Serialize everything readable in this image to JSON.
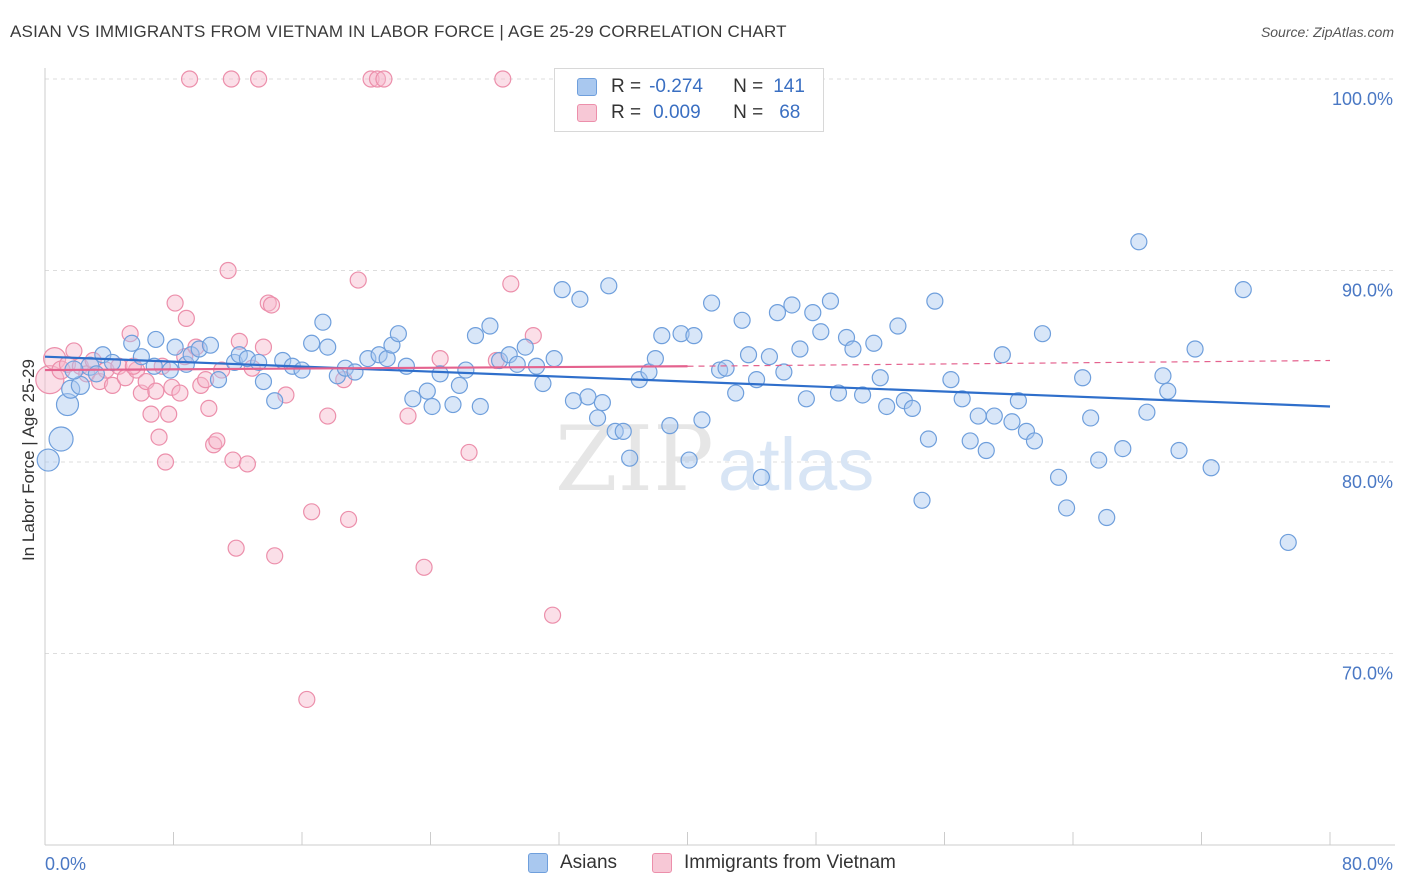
{
  "title": "ASIAN VS IMMIGRANTS FROM VIETNAM IN LABOR FORCE | AGE 25-29 CORRELATION CHART",
  "source": "Source: ZipAtlas.com",
  "watermark": {
    "zip": "ZIP",
    "atlas": "atlas"
  },
  "legend": {
    "series1": {
      "r_label": "R =",
      "r_value": "-0.274",
      "n_label": "N =",
      "n_value": "141"
    },
    "series2": {
      "r_label": "R =",
      "r_value": "0.009",
      "n_label": "N =",
      "n_value": "68"
    }
  },
  "bottom_legend": {
    "series1": "Asians",
    "series2": "Immigrants from Vietnam"
  },
  "colors": {
    "asian_fill": "#a9c8ef",
    "asian_stroke": "#6f9fdc",
    "asian_line": "#2f6fcb",
    "viet_fill": "#f7b9cb",
    "viet_stroke": "#ec8fab",
    "viet_line": "#e4628e",
    "tick_text": "#4a78c4",
    "grid": "#dddddd"
  },
  "chart_data": {
    "type": "scatter",
    "title": "ASIAN VS IMMIGRANTS FROM VIETNAM IN LABOR FORCE | AGE 25-29 CORRELATION CHART",
    "xlabel": "",
    "ylabel": "In Labor Force | Age 25-29",
    "xlim": [
      0,
      80
    ],
    "ylim": [
      60,
      102
    ],
    "x_tick_labels": [
      "0.0%",
      "80.0%"
    ],
    "y_ticks": [
      70,
      80,
      90,
      100
    ],
    "y_tick_labels": [
      "70.0%",
      "80.0%",
      "90.0%",
      "100.0%"
    ],
    "grid": "horizontal dashed",
    "legend_position": "top-center",
    "series": [
      {
        "name": "Asians",
        "R": -0.274,
        "N": 141,
        "trend": {
          "x": [
            0,
            80
          ],
          "y": [
            85.5,
            82.9
          ]
        },
        "points": [
          [
            0.2,
            80.1,
            11
          ],
          [
            1.0,
            81.2,
            12
          ],
          [
            1.4,
            83.0,
            11
          ],
          [
            1.6,
            83.8,
            9
          ],
          [
            2.2,
            84.0,
            9
          ],
          [
            2.8,
            85.0,
            9
          ],
          [
            3.6,
            85.6,
            8
          ],
          [
            3.2,
            84.6,
            8
          ],
          [
            5.4,
            86.2,
            8
          ],
          [
            6.0,
            85.5,
            8
          ],
          [
            6.9,
            86.4,
            8
          ],
          [
            6.8,
            85.0,
            8
          ],
          [
            7.8,
            84.8,
            8
          ],
          [
            8.1,
            86.0,
            8
          ],
          [
            8.8,
            85.1,
            8
          ],
          [
            9.1,
            85.6,
            8
          ],
          [
            9.6,
            85.9,
            8
          ],
          [
            10.3,
            86.1,
            8
          ],
          [
            10.8,
            84.3,
            8
          ],
          [
            11.8,
            85.2,
            8
          ],
          [
            12.1,
            85.6,
            8
          ],
          [
            12.6,
            85.4,
            8
          ],
          [
            13.6,
            84.2,
            8
          ],
          [
            13.3,
            85.2,
            8
          ],
          [
            14.3,
            83.2,
            8
          ],
          [
            14.8,
            85.3,
            8
          ],
          [
            15.4,
            85.0,
            8
          ],
          [
            16.0,
            84.8,
            8
          ],
          [
            16.6,
            86.2,
            8
          ],
          [
            17.3,
            87.3,
            8
          ],
          [
            17.6,
            86.0,
            8
          ],
          [
            18.2,
            84.5,
            8
          ],
          [
            18.7,
            84.9,
            8
          ],
          [
            19.3,
            84.7,
            8
          ],
          [
            20.1,
            85.4,
            8
          ],
          [
            20.8,
            85.6,
            8
          ],
          [
            21.3,
            85.4,
            8
          ],
          [
            21.6,
            86.1,
            8
          ],
          [
            22.0,
            86.7,
            8
          ],
          [
            22.5,
            85.0,
            8
          ],
          [
            22.9,
            83.3,
            8
          ],
          [
            23.8,
            83.7,
            8
          ],
          [
            24.1,
            82.9,
            8
          ],
          [
            24.6,
            84.6,
            8
          ],
          [
            25.4,
            83.0,
            8
          ],
          [
            25.8,
            84.0,
            8
          ],
          [
            26.8,
            86.6,
            8
          ],
          [
            27.1,
            82.9,
            8
          ],
          [
            27.7,
            87.1,
            8
          ],
          [
            28.3,
            85.3,
            8
          ],
          [
            28.9,
            85.6,
            8
          ],
          [
            29.4,
            85.1,
            8
          ],
          [
            29.9,
            86.0,
            8
          ],
          [
            30.6,
            85.0,
            8
          ],
          [
            31.0,
            84.1,
            8
          ],
          [
            31.7,
            85.4,
            8
          ],
          [
            32.2,
            89.0,
            8
          ],
          [
            32.9,
            83.2,
            8
          ],
          [
            33.3,
            88.5,
            8
          ],
          [
            33.8,
            83.4,
            8
          ],
          [
            34.4,
            82.3,
            8
          ],
          [
            34.7,
            83.1,
            8
          ],
          [
            35.1,
            89.2,
            8
          ],
          [
            35.5,
            81.6,
            8
          ],
          [
            36.0,
            81.6,
            8
          ],
          [
            36.4,
            80.2,
            8
          ],
          [
            37.0,
            84.3,
            8
          ],
          [
            37.6,
            84.7,
            8
          ],
          [
            38.0,
            85.4,
            8
          ],
          [
            38.4,
            86.6,
            8
          ],
          [
            38.9,
            81.9,
            8
          ],
          [
            39.6,
            86.7,
            8
          ],
          [
            40.1,
            80.1,
            8
          ],
          [
            40.4,
            86.6,
            8
          ],
          [
            40.9,
            82.2,
            8
          ],
          [
            41.5,
            88.3,
            8
          ],
          [
            42.0,
            84.8,
            8
          ],
          [
            42.4,
            84.9,
            8
          ],
          [
            43.0,
            83.6,
            8
          ],
          [
            43.4,
            87.4,
            8
          ],
          [
            43.8,
            85.6,
            8
          ],
          [
            44.3,
            84.3,
            8
          ],
          [
            44.6,
            79.2,
            8
          ],
          [
            45.1,
            85.5,
            8
          ],
          [
            45.6,
            87.8,
            8
          ],
          [
            46.0,
            84.7,
            8
          ],
          [
            46.5,
            88.2,
            8
          ],
          [
            47.0,
            85.9,
            8
          ],
          [
            47.4,
            83.3,
            8
          ],
          [
            47.8,
            87.8,
            8
          ],
          [
            48.3,
            86.8,
            8
          ],
          [
            48.9,
            88.4,
            8
          ],
          [
            49.4,
            83.6,
            8
          ],
          [
            49.9,
            86.5,
            8
          ],
          [
            50.3,
            85.9,
            8
          ],
          [
            50.9,
            83.5,
            8
          ],
          [
            51.6,
            86.2,
            8
          ],
          [
            52.0,
            84.4,
            8
          ],
          [
            52.4,
            82.9,
            8
          ],
          [
            53.1,
            87.1,
            8
          ],
          [
            53.5,
            83.2,
            8
          ],
          [
            54.0,
            82.8,
            8
          ],
          [
            54.6,
            78.0,
            8
          ],
          [
            55.0,
            81.2,
            8
          ],
          [
            55.4,
            88.4,
            8
          ],
          [
            56.4,
            84.3,
            8
          ],
          [
            57.1,
            83.3,
            8
          ],
          [
            57.6,
            81.1,
            8
          ],
          [
            58.1,
            82.4,
            8
          ],
          [
            58.6,
            80.6,
            8
          ],
          [
            59.1,
            82.4,
            8
          ],
          [
            59.6,
            85.6,
            8
          ],
          [
            60.2,
            82.1,
            8
          ],
          [
            60.6,
            83.2,
            8
          ],
          [
            61.1,
            81.6,
            8
          ],
          [
            61.6,
            81.1,
            8
          ],
          [
            62.1,
            86.7,
            8
          ],
          [
            63.1,
            79.2,
            8
          ],
          [
            63.6,
            77.6,
            8
          ],
          [
            64.6,
            84.4,
            8
          ],
          [
            65.1,
            82.3,
            8
          ],
          [
            65.6,
            80.1,
            8
          ],
          [
            66.1,
            77.1,
            8
          ],
          [
            67.1,
            80.7,
            8
          ],
          [
            68.1,
            91.5,
            8
          ],
          [
            68.6,
            82.6,
            8
          ],
          [
            69.6,
            84.5,
            8
          ],
          [
            69.9,
            83.7,
            8
          ],
          [
            70.6,
            80.6,
            8
          ],
          [
            71.6,
            85.9,
            8
          ],
          [
            72.6,
            79.7,
            8
          ],
          [
            74.6,
            89.0,
            8
          ],
          [
            77.4,
            75.8,
            8
          ],
          [
            1.8,
            84.8,
            9
          ],
          [
            4.2,
            85.2,
            8
          ],
          [
            26.2,
            84.8,
            8
          ]
        ]
      },
      {
        "name": "Immigrants from Vietnam",
        "R": 0.009,
        "N": 68,
        "trend": {
          "x": [
            0,
            40
          ],
          "y": [
            84.8,
            85.0
          ],
          "dashed_extension": {
            "x": [
              40,
              80
            ],
            "y": [
              85.0,
              85.3
            ]
          }
        },
        "points": [
          [
            0.3,
            84.3,
            14
          ],
          [
            0.6,
            85.4,
            11
          ],
          [
            1.0,
            84.8,
            9
          ],
          [
            1.4,
            85.1,
            8
          ],
          [
            1.8,
            85.8,
            8
          ],
          [
            2.2,
            85.0,
            8
          ],
          [
            2.6,
            84.6,
            8
          ],
          [
            3.0,
            85.3,
            8
          ],
          [
            3.4,
            84.2,
            8
          ],
          [
            3.8,
            84.8,
            8
          ],
          [
            4.2,
            84.0,
            8
          ],
          [
            4.6,
            85.0,
            8
          ],
          [
            5.0,
            84.4,
            8
          ],
          [
            5.3,
            86.7,
            8
          ],
          [
            5.7,
            84.8,
            8
          ],
          [
            6.0,
            83.6,
            8
          ],
          [
            6.3,
            84.2,
            8
          ],
          [
            6.6,
            82.5,
            8
          ],
          [
            6.9,
            83.7,
            8
          ],
          [
            7.1,
            81.3,
            8
          ],
          [
            7.3,
            85.0,
            8
          ],
          [
            7.5,
            80.0,
            8
          ],
          [
            7.7,
            82.5,
            8
          ],
          [
            7.9,
            83.9,
            8
          ],
          [
            8.1,
            88.3,
            8
          ],
          [
            8.4,
            83.6,
            8
          ],
          [
            8.7,
            85.5,
            8
          ],
          [
            8.8,
            87.5,
            8
          ],
          [
            9.0,
            100.0,
            8
          ],
          [
            9.4,
            86.0,
            8
          ],
          [
            9.7,
            84.0,
            8
          ],
          [
            10.0,
            84.3,
            8
          ],
          [
            10.2,
            82.8,
            8
          ],
          [
            10.5,
            80.9,
            8
          ],
          [
            10.7,
            81.1,
            8
          ],
          [
            11.0,
            84.8,
            8
          ],
          [
            11.4,
            90.0,
            8
          ],
          [
            11.6,
            100.0,
            8
          ],
          [
            11.7,
            80.1,
            8
          ],
          [
            11.9,
            75.5,
            8
          ],
          [
            12.1,
            86.3,
            8
          ],
          [
            12.6,
            79.9,
            8
          ],
          [
            13.3,
            100.0,
            8
          ],
          [
            13.6,
            86.0,
            8
          ],
          [
            13.9,
            88.3,
            8
          ],
          [
            14.1,
            88.2,
            8
          ],
          [
            14.3,
            75.1,
            8
          ],
          [
            15.0,
            83.5,
            8
          ],
          [
            16.3,
            67.6,
            8
          ],
          [
            16.6,
            77.4,
            8
          ],
          [
            17.6,
            82.4,
            8
          ],
          [
            18.6,
            84.3,
            8
          ],
          [
            18.9,
            77.0,
            8
          ],
          [
            19.5,
            89.5,
            8
          ],
          [
            20.3,
            100.0,
            8
          ],
          [
            20.7,
            100.0,
            8
          ],
          [
            21.1,
            100.0,
            8
          ],
          [
            22.6,
            82.4,
            8
          ],
          [
            23.6,
            74.5,
            8
          ],
          [
            24.6,
            85.4,
            8
          ],
          [
            26.4,
            80.5,
            8
          ],
          [
            28.1,
            85.3,
            8
          ],
          [
            28.5,
            100.0,
            8
          ],
          [
            29.0,
            89.3,
            8
          ],
          [
            30.4,
            86.6,
            8
          ],
          [
            31.6,
            72.0,
            8
          ],
          [
            12.9,
            84.9,
            8
          ],
          [
            5.5,
            85.0,
            8
          ]
        ]
      }
    ]
  }
}
